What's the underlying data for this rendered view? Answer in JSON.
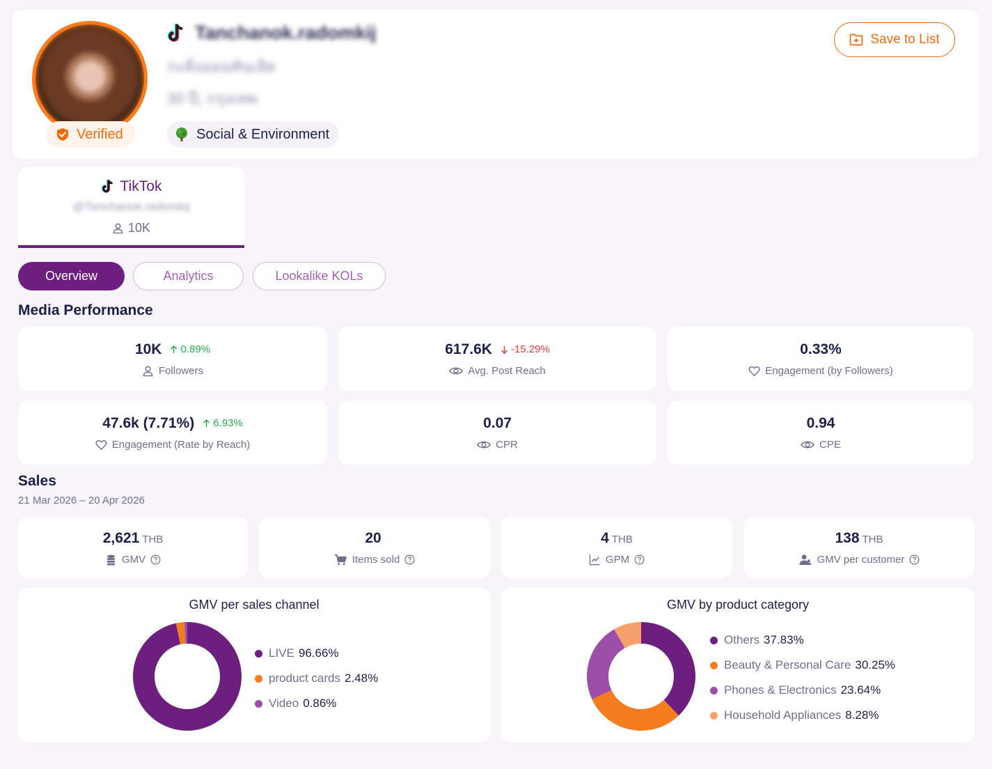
{
  "profile": {
    "verified_label": "Verified",
    "username": "Tanchanok.radomkij",
    "subtitle": "กะดิ่งออนทันเลิด",
    "location": "30 ปี, กรุงเทพ",
    "category": "Social & Environment",
    "save_label": "Save to List"
  },
  "platform": {
    "name": "TikTok",
    "handle": "@Tanchanok.radomkij",
    "followers": "10K"
  },
  "tabs": [
    "Overview",
    "Analytics",
    "Lookalike KOLs"
  ],
  "media_performance": {
    "title": "Media Performance",
    "stats": [
      {
        "value": "10K",
        "delta": "0.89%",
        "trend": "up",
        "label": "Followers",
        "icon": "user-icon"
      },
      {
        "value": "617.6K",
        "delta": "-15.29%",
        "trend": "down",
        "label": "Avg. Post Reach",
        "icon": "eye-icon"
      },
      {
        "value": "0.33%",
        "delta": "",
        "trend": "",
        "label": "Engagement (by Followers)",
        "icon": "heart-icon"
      },
      {
        "value": "47.6k (7.71%)",
        "delta": "6.93%",
        "trend": "up",
        "label": "Engagement (Rate by Reach)",
        "icon": "heart-icon"
      },
      {
        "value": "0.07",
        "delta": "",
        "trend": "",
        "label": "CPR",
        "icon": "eye-icon"
      },
      {
        "value": "0.94",
        "delta": "",
        "trend": "",
        "label": "CPE",
        "icon": "eye-icon"
      }
    ]
  },
  "sales": {
    "title": "Sales",
    "date_range": "21 Mar 2026 – 20 Apr 2026",
    "stats": [
      {
        "value": "2,621",
        "unit": "THB",
        "label": "GMV",
        "icon": "coins-icon"
      },
      {
        "value": "20",
        "unit": "",
        "label": "Items sold",
        "icon": "cart-icon"
      },
      {
        "value": "4",
        "unit": "THB",
        "label": "GPM",
        "icon": "line-chart-icon"
      },
      {
        "value": "138",
        "unit": "THB",
        "label": "GMV per customer",
        "icon": "users-icon"
      }
    ]
  },
  "colors": {
    "brand_purple": "#6c1f7e",
    "accent_orange": "#f06a0f",
    "light_purple": "#9b4fa8",
    "light_orange": "#f7a06a",
    "positive": "#22b24c",
    "negative": "#e53935"
  },
  "chart_data": [
    {
      "type": "pie",
      "title": "GMV per sales channel",
      "categories": [
        "LIVE",
        "product cards",
        "Video"
      ],
      "values": [
        96.66,
        2.48,
        0.86
      ],
      "labels": [
        "96.66%",
        "2.48%",
        "0.86%"
      ],
      "colors": [
        "#6c1f7e",
        "#f57c1f",
        "#9b4fa8"
      ]
    },
    {
      "type": "pie",
      "title": "GMV by product category",
      "categories": [
        "Others",
        "Beauty & Personal Care",
        "Phones & Electronics",
        "Household Appliances"
      ],
      "values": [
        37.83,
        30.25,
        23.64,
        8.28
      ],
      "labels": [
        "37.83%",
        "30.25%",
        "23.64%",
        "8.28%"
      ],
      "colors": [
        "#6c1f7e",
        "#f57c1f",
        "#9b4fa8",
        "#f7a06a"
      ]
    }
  ]
}
